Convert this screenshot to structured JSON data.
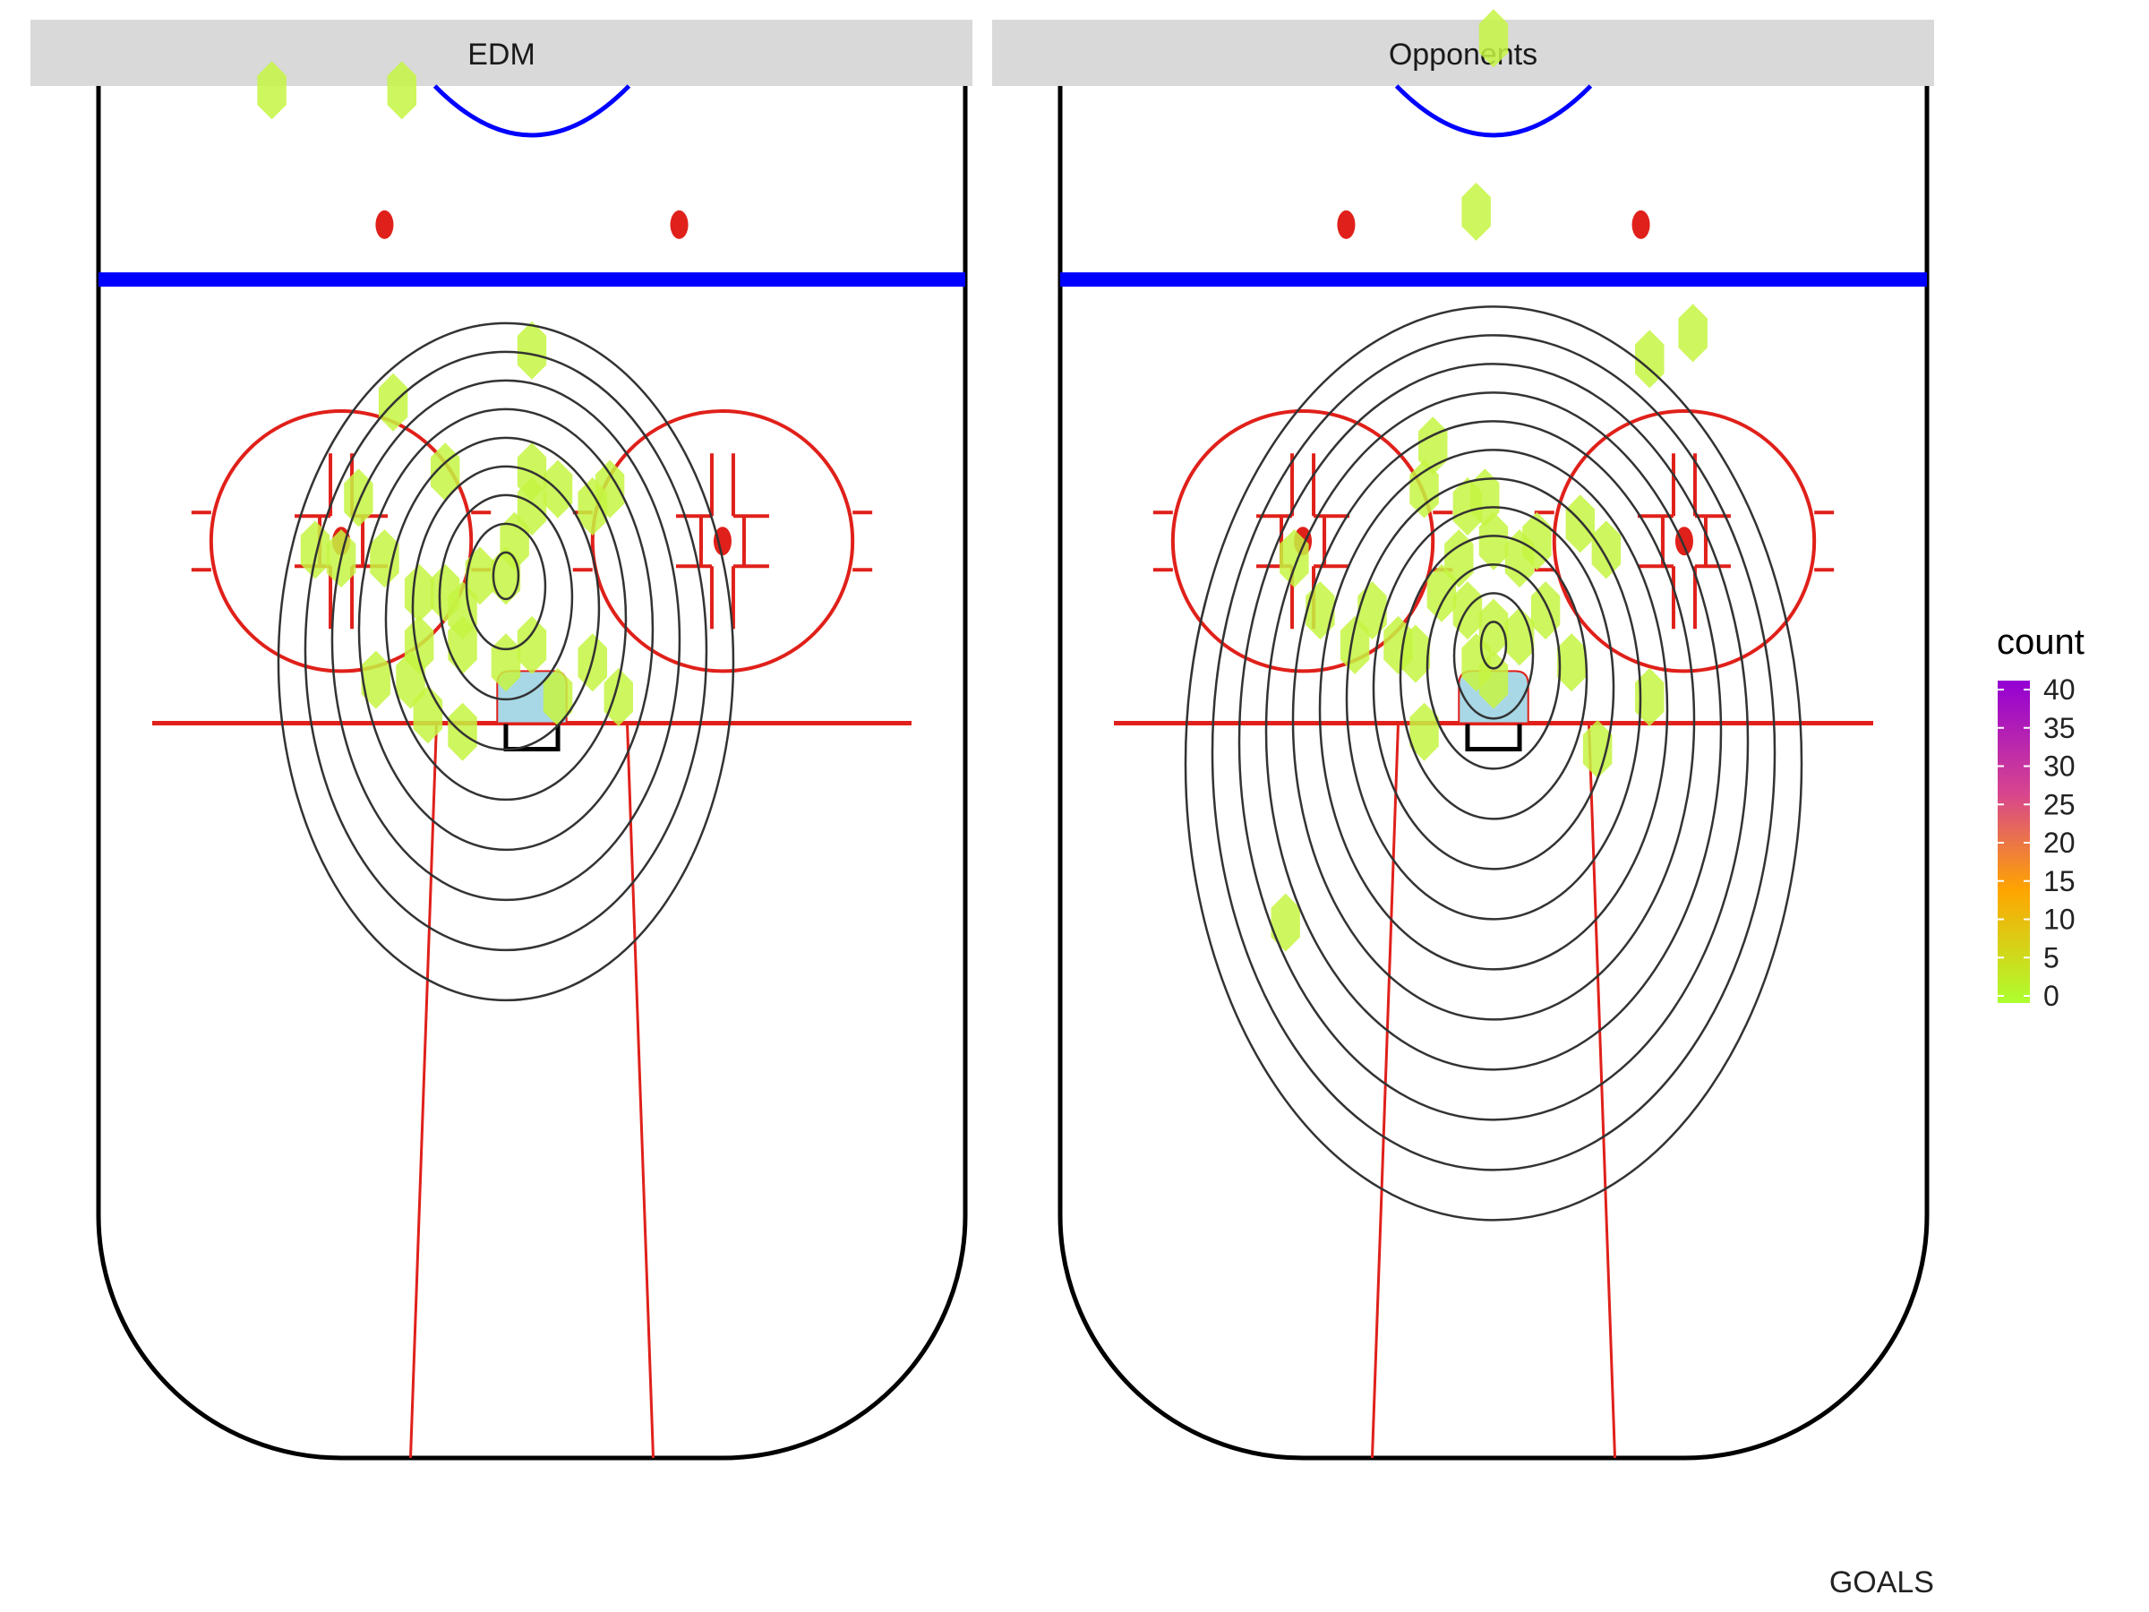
{
  "chart_data": {
    "type": "heatmap",
    "caption": "GOALS",
    "grid": false,
    "legend": {
      "title": "count",
      "position": "right",
      "ticks": [
        "40",
        "35",
        "30",
        "25",
        "20",
        "15",
        "10",
        "5",
        "0"
      ],
      "range": [
        0,
        40
      ],
      "colors": [
        "#9400d3",
        "#d7458f",
        "#ffa500",
        "#adff2f"
      ]
    },
    "colors": {
      "hex_fill": "#c5f542",
      "contour": "#333333",
      "crease": "#a8d8e6",
      "red_line": "#e0201a",
      "blue_line": "#0000ff",
      "boards": "#000000",
      "strip_bg": "#d9d9d9"
    },
    "facets": [
      {
        "label": "EDM",
        "hexes": [
          [
            -30,
            16
          ],
          [
            -15,
            16
          ],
          [
            0,
            46
          ],
          [
            -16,
            52
          ],
          [
            -20,
            63
          ],
          [
            -10,
            60
          ],
          [
            -25,
            69
          ],
          [
            -22,
            70
          ],
          [
            -17,
            70
          ],
          [
            0,
            60
          ],
          [
            0,
            64
          ],
          [
            3,
            62
          ],
          [
            7,
            64
          ],
          [
            9,
            62
          ],
          [
            -2,
            68
          ],
          [
            -13,
            74
          ],
          [
            -10,
            74
          ],
          [
            -8,
            76
          ],
          [
            -3,
            72
          ],
          [
            -18,
            84
          ],
          [
            -14,
            84
          ],
          [
            -8,
            80
          ],
          [
            -12,
            88
          ],
          [
            -8,
            90
          ],
          [
            -3,
            82
          ],
          [
            0,
            80
          ],
          [
            3,
            86
          ],
          [
            7,
            82
          ],
          [
            10,
            86
          ],
          [
            -6,
            72
          ],
          [
            -13,
            80
          ]
        ],
        "density_center": [
          -3,
          72
        ],
        "contour_levels": 9
      },
      {
        "label": "Opponents",
        "hexes": [
          [
            0,
            10
          ],
          [
            -2,
            30
          ],
          [
            18,
            47
          ],
          [
            23,
            44
          ],
          [
            -7,
            57
          ],
          [
            -8,
            62
          ],
          [
            -3,
            64
          ],
          [
            -23,
            70
          ],
          [
            0,
            68
          ],
          [
            3,
            70
          ],
          [
            5,
            68
          ],
          [
            10,
            66
          ],
          [
            13,
            69
          ],
          [
            -1,
            63
          ],
          [
            -20,
            76
          ],
          [
            -14,
            76
          ],
          [
            -16,
            80
          ],
          [
            -11,
            80
          ],
          [
            -9,
            81
          ],
          [
            -3,
            76
          ],
          [
            0,
            78
          ],
          [
            3,
            79
          ],
          [
            6,
            76
          ],
          [
            9,
            82
          ],
          [
            -2,
            82
          ],
          [
            0,
            84
          ],
          [
            -8,
            90
          ],
          [
            12,
            92
          ],
          [
            18,
            86
          ],
          [
            -24,
            112
          ],
          [
            -6,
            74
          ],
          [
            -4,
            70
          ]
        ],
        "density_center": [
          0,
          80
        ],
        "contour_levels": 12
      }
    ]
  }
}
